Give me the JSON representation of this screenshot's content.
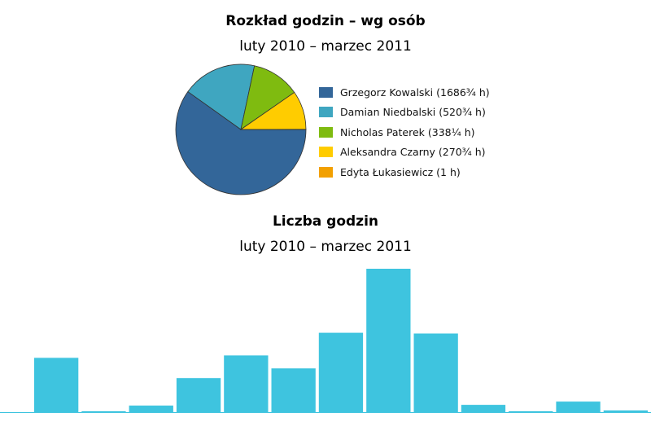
{
  "chart_data": [
    {
      "type": "pie",
      "title": "Rozkład godzin – wg osób",
      "subtitle": "luty 2010 – marzec 2011",
      "legend_position": "right",
      "slices": [
        {
          "label": "Grzegorz Kowalski (1686¾ h)",
          "value": 1686.75,
          "color": "#336699"
        },
        {
          "label": "Damian Niedbalski (520¾ h)",
          "value": 520.75,
          "color": "#3fa6c0"
        },
        {
          "label": "Nicholas Paterek (338¼ h)",
          "value": 338.25,
          "color": "#7fbb10"
        },
        {
          "label": "Aleksandra Czarny (270¾ h)",
          "value": 270.75,
          "color": "#ffcc00"
        },
        {
          "label": "Edyta Łukasiewicz (1 h)",
          "value": 1,
          "color": "#f2a000"
        }
      ]
    },
    {
      "type": "bar",
      "title": "Liczba godzin",
      "subtitle": "luty 2010 – marzec 2011",
      "color": "#3ec4df",
      "values": [
        67,
        1,
        8,
        42,
        70,
        54,
        98,
        177,
        97,
        9,
        1,
        13,
        2
      ],
      "ylim": [
        0,
        180
      ],
      "grid": false
    }
  ]
}
